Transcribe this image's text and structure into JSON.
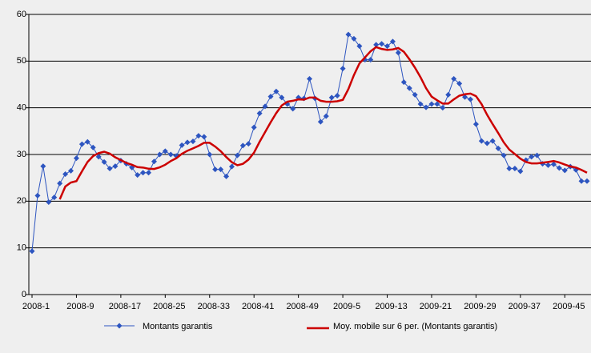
{
  "chart_data": {
    "type": "line",
    "categories": [
      "2008-1",
      null,
      null,
      null,
      null,
      null,
      null,
      null,
      "2008-9",
      null,
      null,
      null,
      null,
      null,
      null,
      null,
      "2008-17",
      null,
      null,
      null,
      null,
      null,
      null,
      null,
      "2008-25",
      null,
      null,
      null,
      null,
      null,
      null,
      null,
      "2008-33",
      null,
      null,
      null,
      null,
      null,
      null,
      null,
      "2008-41",
      null,
      null,
      null,
      null,
      null,
      null,
      null,
      "2008-49",
      null,
      null,
      null,
      null,
      null,
      null,
      null,
      "2009-5",
      null,
      null,
      null,
      null,
      null,
      null,
      null,
      "2009-13",
      null,
      null,
      null,
      null,
      null,
      null,
      null,
      "2009-21",
      null,
      null,
      null,
      null,
      null,
      null,
      null,
      "2009-29",
      null,
      null,
      null,
      null,
      null,
      null,
      null,
      "2009-37",
      null,
      null,
      null,
      null,
      null,
      null,
      null,
      "2009-45",
      null,
      null,
      null,
      null
    ],
    "series": [
      {
        "name": "Montants garantis",
        "color": "#2d55c0",
        "marker": "diamond",
        "values": [
          9.3,
          21.2,
          27.5,
          19.8,
          20.8,
          23.8,
          25.8,
          26.5,
          29.2,
          32.2,
          32.7,
          31.5,
          29.5,
          28.4,
          27.0,
          27.5,
          28.7,
          28.0,
          27.2,
          25.6,
          26.1,
          26.1,
          28.5,
          30.0,
          30.7,
          30.0,
          29.7,
          32.0,
          32.6,
          32.8,
          34.0,
          33.8,
          30.0,
          26.8,
          26.8,
          25.3,
          27.4,
          29.8,
          31.9,
          32.3,
          35.8,
          38.8,
          40.3,
          42.4,
          43.5,
          42.2,
          40.8,
          39.8,
          42.2,
          42.0,
          46.2,
          42.0,
          37.0,
          38.2,
          42.2,
          42.6,
          48.4,
          55.7,
          54.8,
          53.2,
          50.3,
          50.3,
          53.5,
          53.7,
          53.2,
          54.2,
          51.8,
          45.5,
          44.2,
          42.8,
          40.8,
          40.1,
          40.8,
          40.8,
          40.0,
          42.8,
          46.2,
          45.2,
          42.3,
          41.8,
          36.5,
          32.9,
          32.4,
          32.9,
          31.3,
          29.8,
          27.0,
          27.0,
          26.4,
          28.8,
          29.5,
          29.8,
          28.0,
          27.7,
          27.9,
          27.1,
          26.6,
          27.4,
          26.7,
          24.3,
          24.3
        ]
      },
      {
        "name": "Moy. mobile sur 6 per. (Montants garantis)",
        "color": "#cc0000",
        "marker": "none",
        "values": [
          null,
          null,
          null,
          null,
          null,
          20.4,
          23.15,
          24.0,
          24.3,
          26.4,
          28.4,
          29.65,
          30.3,
          30.6,
          30.2,
          29.4,
          28.8,
          28.2,
          27.8,
          27.3,
          27.2,
          26.95,
          26.9,
          27.25,
          27.8,
          28.6,
          29.2,
          30.15,
          30.8,
          31.3,
          31.85,
          32.5,
          32.5,
          31.7,
          30.7,
          29.45,
          28.35,
          27.7,
          28.0,
          28.9,
          30.4,
          32.7,
          34.8,
          36.9,
          38.85,
          40.5,
          41.3,
          41.5,
          41.8,
          41.75,
          42.2,
          42.2,
          41.5,
          41.3,
          41.3,
          41.4,
          41.7,
          44.0,
          47.0,
          49.5,
          50.8,
          52.1,
          53.0,
          52.6,
          52.4,
          52.5,
          52.8,
          52.0,
          50.4,
          48.6,
          46.55,
          44.2,
          42.4,
          41.6,
          40.9,
          40.9,
          41.8,
          42.6,
          42.9,
          43.05,
          42.5,
          40.8,
          38.5,
          36.5,
          34.6,
          32.6,
          31.05,
          30.1,
          29.1,
          28.4,
          28.1,
          28.1,
          28.25,
          28.4,
          28.6,
          28.3,
          27.85,
          27.45,
          27.2,
          26.7,
          26.1
        ]
      }
    ],
    "ylim": [
      0,
      60
    ],
    "yticks": [
      0,
      10,
      20,
      30,
      40,
      50,
      60
    ],
    "grid": true,
    "legend": "bottom"
  }
}
